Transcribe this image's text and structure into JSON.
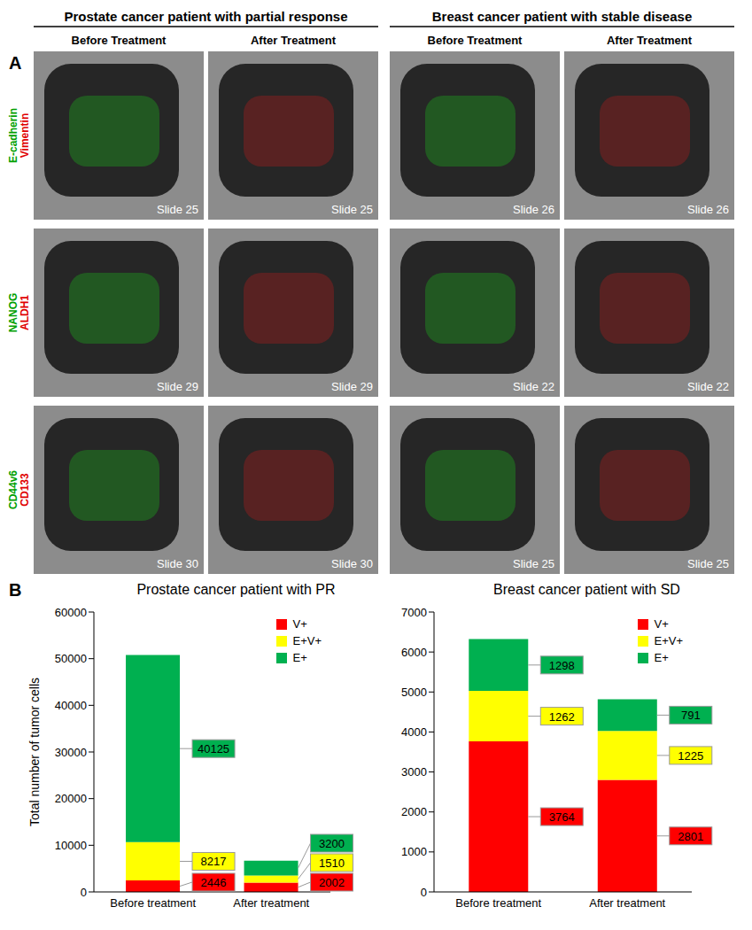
{
  "panel_a": {
    "label": "A",
    "groups": [
      {
        "title": "Prostate cancer patient with partial response",
        "columns": [
          "Before Treatment",
          "After Treatment"
        ]
      },
      {
        "title": "Breast cancer patient with stable disease",
        "columns": [
          "Before Treatment",
          "After Treatment"
        ]
      }
    ],
    "rows": [
      {
        "markers": [
          {
            "text": "E-cadherin",
            "color": "#00a000"
          },
          {
            "text": "Vimentin",
            "color": "#e00000"
          }
        ],
        "slides": [
          "Slide 25",
          "Slide 25",
          "Slide 26",
          "Slide 26"
        ]
      },
      {
        "markers": [
          {
            "text": "NANOG",
            "color": "#00a000"
          },
          {
            "text": "ALDH1",
            "color": "#e00000"
          }
        ],
        "slides": [
          "Slide 29",
          "Slide 29",
          "Slide 22",
          "Slide 22"
        ]
      },
      {
        "markers": [
          {
            "text": "CD44v6",
            "color": "#00a000"
          },
          {
            "text": "CD133",
            "color": "#e00000"
          }
        ],
        "slides": [
          "Slide 30",
          "Slide 30",
          "Slide 25",
          "Slide 25"
        ]
      }
    ]
  },
  "panel_b": {
    "label": "B"
  },
  "chart_data": [
    {
      "type": "bar",
      "title": "Prostate cancer patient with PR",
      "y_label": "Total number of tumor cells",
      "categories": [
        "Before treatment",
        "After treatment"
      ],
      "stacked": true,
      "data_labels": true,
      "legend": "top right",
      "ylim": [
        0,
        60000
      ],
      "yticks": [
        0,
        10000,
        20000,
        30000,
        40000,
        50000,
        60000
      ],
      "series": [
        {
          "name": "V+",
          "color": "#ff0000",
          "values": [
            2446,
            2002
          ]
        },
        {
          "name": "E+V+",
          "color": "#ffff00",
          "values": [
            8217,
            1510
          ]
        },
        {
          "name": "E+",
          "color": "#00b050",
          "values": [
            40125,
            3200
          ]
        }
      ]
    },
    {
      "type": "bar",
      "title": "Breast cancer patient with SD",
      "categories": [
        "Before treatment",
        "After treatment"
      ],
      "stacked": true,
      "data_labels": true,
      "legend": "top right",
      "ylim": [
        0,
        7000
      ],
      "yticks": [
        0,
        1000,
        2000,
        3000,
        4000,
        5000,
        6000,
        7000
      ],
      "series": [
        {
          "name": "V+",
          "color": "#ff0000",
          "values": [
            3764,
            2801
          ]
        },
        {
          "name": "E+V+",
          "color": "#ffff00",
          "values": [
            1262,
            1225
          ]
        },
        {
          "name": "E+",
          "color": "#00b050",
          "values": [
            1298,
            791
          ]
        }
      ]
    }
  ]
}
